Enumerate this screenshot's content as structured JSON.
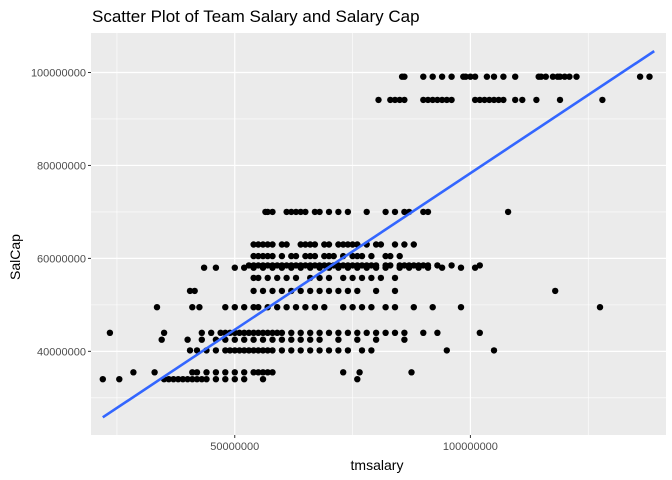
{
  "chart_data": {
    "type": "scatter",
    "title": "Scatter Plot of Team Salary and Salary Cap",
    "xlabel": "tmsalary",
    "ylabel": "SalCap",
    "xlim": [
      19500000,
      141500000
    ],
    "ylim": [
      22000000,
      108500000
    ],
    "x_ticks": [
      50000000,
      100000000
    ],
    "x_tick_labels": [
      "50000000",
      "100000000"
    ],
    "x_minor_ticks": [
      25000000,
      75000000,
      125000000
    ],
    "y_ticks": [
      40000000,
      60000000,
      80000000,
      100000000
    ],
    "y_tick_labels": [
      "40000000",
      "60000000",
      "80000000",
      "100000000"
    ],
    "y_minor_ticks": [
      30000000,
      50000000,
      70000000,
      90000000
    ],
    "grid": true,
    "colors": {
      "panel": "#ebebeb",
      "grid": "#ffffff",
      "point": "#000000",
      "trend": "#3366ff"
    },
    "trend_line": {
      "x": [
        22000000,
        139000000
      ],
      "y": [
        25800000,
        104600000
      ]
    },
    "series": [
      {
        "cap": 99100000,
        "x": [
          85500000,
          86000000,
          90000000,
          92000000,
          94000000,
          96000000,
          98500000,
          99000000,
          100000000,
          101000000,
          103500000,
          105000000,
          107000000,
          109500000,
          114500000,
          115000000,
          116000000,
          117500000,
          118500000,
          119000000,
          120000000,
          121000000,
          122500000,
          136000000,
          138000000
        ]
      },
      {
        "cap": 94100000,
        "x": [
          80500000,
          83000000,
          84000000,
          85000000,
          86000000,
          90000000,
          91000000,
          92000000,
          93000000,
          94000000,
          95000000,
          96000000,
          101000000,
          102000000,
          103000000,
          104000000,
          105000000,
          106000000,
          107000000,
          109500000,
          111000000,
          114000000,
          119000000,
          128000000
        ]
      },
      {
        "cap": 70000000,
        "x": [
          56500000,
          57000000,
          58000000,
          61000000,
          62000000,
          63000000,
          64000000,
          65000000,
          67000000,
          68000000,
          70000000,
          72000000,
          74000000,
          78000000,
          82000000,
          84000000,
          86000000,
          87000000,
          90000000,
          91000000,
          108000000
        ]
      },
      {
        "cap": 63000000,
        "x": [
          54000000,
          55000000,
          56000000,
          57000000,
          58000000,
          60000000,
          61000000,
          64000000,
          65000000,
          66000000,
          67000000,
          69000000,
          70000000,
          72000000,
          73000000,
          74000000,
          75000000,
          76000000,
          78000000,
          80000000,
          81000000,
          84000000,
          86000000,
          88000000
        ]
      },
      {
        "cap": 60500000,
        "x": [
          54000000,
          55000000,
          56000000,
          57000000,
          58000000,
          60000000,
          62000000,
          63000000,
          65000000,
          66000000,
          67000000,
          69000000,
          70000000,
          71000000,
          73000000,
          75000000,
          76000000,
          77000000,
          79000000,
          82000000,
          83000000,
          85000000
        ]
      },
      {
        "cap": 58500000,
        "x": [
          53000000,
          54000000,
          55000000,
          56000000,
          57000000,
          58000000,
          59000000,
          60000000,
          61000000,
          62000000,
          63000000,
          64000000,
          65000000,
          66000000,
          67000000,
          68000000,
          69000000,
          70000000,
          71000000,
          72000000,
          73000000,
          74000000,
          75000000,
          76000000,
          77000000,
          78000000,
          79000000,
          80000000,
          82000000,
          83000000,
          85000000,
          86000000,
          87000000,
          88000000,
          89000000,
          90000000,
          91000000,
          93000000,
          96000000,
          102000000
        ]
      },
      {
        "cap": 58000000,
        "x": [
          43500000,
          46000000,
          50000000,
          52000000,
          54000000,
          56000000,
          58000000,
          60000000,
          62000000,
          64000000,
          66000000,
          68000000,
          70000000,
          72000000,
          74000000,
          76000000,
          78000000,
          80000000,
          82000000,
          85000000,
          87000000,
          89000000,
          91000000,
          94000000,
          98000000,
          101000000
        ]
      },
      {
        "cap": 55800000,
        "x": [
          54000000,
          55000000,
          57000000,
          59000000,
          61000000,
          63000000,
          66000000,
          68000000,
          70000000,
          73000000,
          75000000,
          77000000,
          79000000,
          81000000,
          84000000
        ]
      },
      {
        "cap": 53000000,
        "x": [
          40500000,
          41500000,
          54000000,
          56000000,
          58000000,
          60000000,
          62000000,
          64000000,
          66000000,
          68000000,
          70000000,
          72000000,
          74000000,
          76000000,
          80000000,
          84000000,
          118000000
        ]
      },
      {
        "cap": 49500000,
        "x": [
          33500000,
          41000000,
          42500000,
          48000000,
          50000000,
          52000000,
          54000000,
          55000000,
          57000000,
          59000000,
          61000000,
          63000000,
          65000000,
          67000000,
          69000000,
          73000000,
          75000000,
          77000000,
          79000000,
          82000000,
          84000000,
          88000000,
          92000000,
          98000000,
          127500000
        ]
      },
      {
        "cap": 44000000,
        "x": [
          23500000,
          35000000,
          43000000,
          45000000,
          47000000,
          48000000,
          49000000,
          50000000,
          51000000,
          52000000,
          53000000,
          54000000,
          55000000,
          56000000,
          57000000,
          58000000,
          59000000,
          60000000,
          62000000,
          64000000,
          66000000,
          68000000,
          70000000,
          72000000,
          74000000,
          76000000,
          78000000,
          80000000,
          82000000,
          84000000,
          86000000,
          90000000,
          93000000,
          102000000
        ]
      },
      {
        "cap": 42500000,
        "x": [
          34500000,
          40000000,
          43000000,
          46000000,
          48000000,
          50000000,
          52000000,
          54000000,
          56000000,
          58000000,
          60000000,
          62000000,
          64000000,
          66000000,
          68000000,
          72000000,
          76000000,
          80000000,
          86000000
        ]
      },
      {
        "cap": 40200000,
        "x": [
          40500000,
          42000000,
          44000000,
          46000000,
          48000000,
          49000000,
          50000000,
          51000000,
          52000000,
          53000000,
          54000000,
          55000000,
          56000000,
          57000000,
          58000000,
          60000000,
          62000000,
          64000000,
          66000000,
          68000000,
          70000000,
          72000000,
          74000000,
          77000000,
          79000000,
          95000000,
          105000000
        ]
      },
      {
        "cap": 35500000,
        "x": [
          28500000,
          33000000,
          41000000,
          42000000,
          44000000,
          46000000,
          48000000,
          50000000,
          52000000,
          54000000,
          55000000,
          56000000,
          57000000,
          58000000,
          73000000,
          76500000,
          87500000
        ]
      },
      {
        "cap": 34000000,
        "x": [
          22000000,
          25500000,
          35000000,
          36000000,
          37000000,
          38000000,
          39000000,
          40000000,
          41000000,
          42000000,
          43000000,
          44000000,
          46000000,
          48000000,
          50000000,
          52000000,
          56000000,
          76000000
        ]
      }
    ]
  }
}
